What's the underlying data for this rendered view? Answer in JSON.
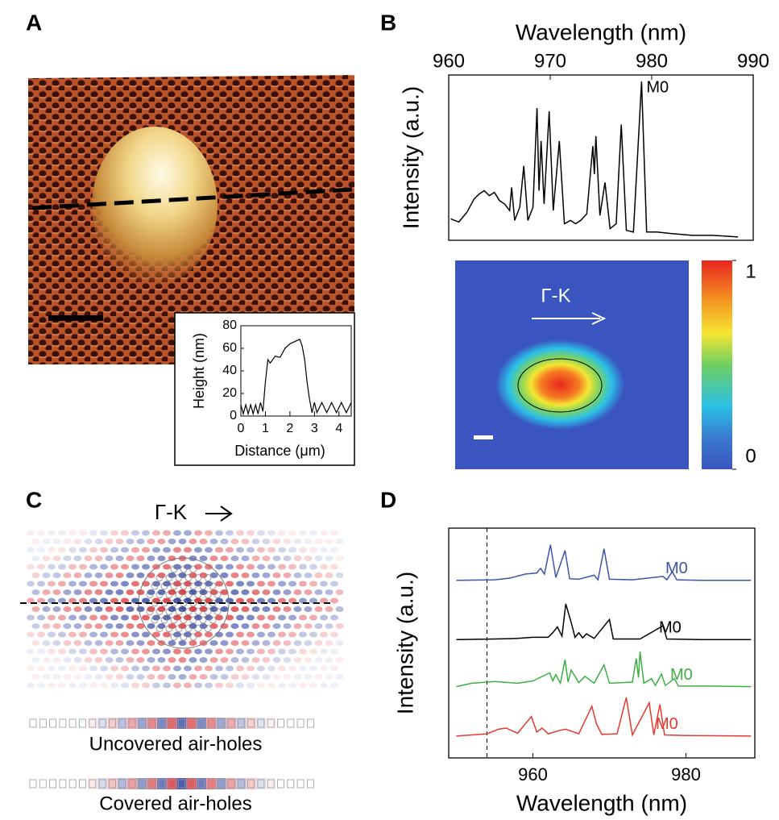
{
  "panel_labels": [
    "A",
    "B",
    "C",
    "D"
  ],
  "panel_b_map": {
    "direction": "Γ-K",
    "colorbar_ticks": [
      1,
      0
    ],
    "clim": [
      0,
      1
    ]
  },
  "panel_c": {
    "direction": "Γ-K",
    "captions": [
      "Uncovered air-holes",
      "Covered air-holes"
    ]
  },
  "chart_data": [
    {
      "type": "line",
      "xlabel": "Distance (μm)",
      "ylabel": "Height (nm)",
      "color": "#000000",
      "x": [
        0,
        0.1,
        0.2,
        0.3,
        0.4,
        0.5,
        0.6,
        0.7,
        0.8,
        0.9,
        1.0,
        1.1,
        1.2,
        1.4,
        1.6,
        1.8,
        2.0,
        2.2,
        2.4,
        2.5,
        2.6,
        2.7,
        2.8,
        2.9,
        3.0,
        3.1,
        3.3,
        3.5,
        3.7,
        3.9,
        4.1,
        4.3,
        4.5
      ],
      "values": [
        10,
        2,
        10,
        2,
        10,
        2,
        10,
        2,
        12,
        4,
        30,
        50,
        47,
        53,
        52,
        60,
        64,
        66,
        68,
        62,
        50,
        30,
        15,
        3,
        12,
        3,
        12,
        3,
        12,
        3,
        12,
        3,
        12
      ],
      "xlim": [
        0,
        4.5
      ],
      "xticks": [
        0,
        1,
        2,
        3,
        4
      ],
      "ylim": [
        0,
        80
      ],
      "yticks": [
        0,
        20,
        40,
        60,
        80
      ]
    },
    {
      "type": "line",
      "xlabel": "Wavelength (nm)",
      "ylabel": "Intensity (a.u.)",
      "x_axis": "top",
      "color": "#000000",
      "annotation": "M0",
      "x": [
        960.2,
        961,
        961.8,
        962.5,
        963,
        963.5,
        964,
        964.5,
        965,
        965.5,
        966,
        966.2,
        966.5,
        967,
        967.4,
        967.8,
        968.3,
        968.7,
        968.9,
        969.1,
        969.4,
        969.9,
        970.3,
        970.9,
        971.4,
        972,
        972.5,
        973,
        973.6,
        974.2,
        974.35,
        974.5,
        974.9,
        975.4,
        975.9,
        976.5,
        977,
        977.5,
        978.2,
        979,
        979.5,
        980.5,
        982,
        984,
        986,
        988.5
      ],
      "values": [
        0.13,
        0.11,
        0.17,
        0.25,
        0.28,
        0.3,
        0.27,
        0.29,
        0.24,
        0.22,
        0.18,
        0.32,
        0.12,
        0.2,
        0.45,
        0.12,
        0.2,
        0.8,
        0.3,
        0.6,
        0.22,
        0.78,
        0.18,
        0.6,
        0.1,
        0.12,
        0.1,
        0.12,
        0.16,
        0.57,
        0.4,
        0.63,
        0.15,
        0.35,
        0.07,
        0.1,
        0.7,
        0.06,
        0.05,
        0.96,
        0.05,
        0.05,
        0.04,
        0.03,
        0.03,
        0.02
      ],
      "xlim": [
        960,
        990
      ],
      "xticks": [
        960,
        970,
        980,
        990
      ],
      "ylim": [
        0,
        1
      ]
    },
    {
      "type": "line",
      "xlabel": "Wavelength (nm)",
      "ylabel": "Intensity (a.u.)",
      "x_axis": "bottom",
      "xlim": [
        949,
        989
      ],
      "xticks": [
        960,
        980
      ],
      "ylim": [
        0,
        4
      ],
      "dashed_line_x": 954,
      "series": [
        {
          "color": "#3b55a8",
          "annotation": "M0",
          "x": [
            950,
            955,
            957,
            959,
            960.5,
            961,
            961.5,
            962.3,
            963,
            964.2,
            964.8,
            966,
            968,
            968.5,
            969.3,
            970,
            973,
            977,
            977.5,
            978.2,
            978.8,
            982,
            988.5
          ],
          "values": [
            3.09,
            3.1,
            3.13,
            3.2,
            3.22,
            3.3,
            3.2,
            3.71,
            3.14,
            3.61,
            3.12,
            3.11,
            3.18,
            3.1,
            3.64,
            3.11,
            3.1,
            3.16,
            3.1,
            3.24,
            3.1,
            3.09,
            3.09
          ]
        },
        {
          "color": "#000000",
          "annotation": "M0",
          "x": [
            950,
            955,
            958,
            960,
            962,
            962.6,
            963.2,
            963.8,
            964.3,
            965,
            965.5,
            966,
            966.5,
            967,
            968,
            970,
            970.5,
            974,
            977,
            977.5,
            982,
            988.5
          ],
          "values": [
            2.06,
            2.07,
            2.08,
            2.1,
            2.1,
            2.18,
            2.28,
            2.12,
            2.68,
            2.36,
            2.1,
            2.18,
            2.09,
            2.16,
            2.08,
            2.41,
            2.07,
            2.07,
            2.3,
            2.07,
            2.06,
            2.06
          ]
        },
        {
          "color": "#3cb043",
          "annotation": "M0",
          "x": [
            950,
            952,
            955,
            958,
            960,
            962.2,
            962.6,
            963,
            963.6,
            964.2,
            964.6,
            965,
            966,
            966.8,
            968,
            969.3,
            970,
            973,
            973.5,
            973.8,
            974,
            974.5,
            975.5,
            976,
            976.8,
            977.3,
            978.5,
            979,
            983,
            988.5
          ],
          "values": [
            1.24,
            1.3,
            1.33,
            1.3,
            1.34,
            1.48,
            1.34,
            1.45,
            1.3,
            1.71,
            1.32,
            1.53,
            1.31,
            1.42,
            1.3,
            1.62,
            1.3,
            1.32,
            1.73,
            1.4,
            1.85,
            1.3,
            1.38,
            1.26,
            1.46,
            1.26,
            1.38,
            1.25,
            1.25,
            1.24
          ]
        },
        {
          "color": "#e53a2f",
          "annotation": "M0",
          "x": [
            950,
            952,
            954,
            955.5,
            956.5,
            958,
            959.8,
            960.5,
            961.2,
            962,
            963.5,
            964.3,
            966,
            967.7,
            968.3,
            969,
            971,
            972.2,
            973,
            975.2,
            975.8,
            976.6,
            977.2,
            980,
            988.5
          ],
          "values": [
            0.38,
            0.4,
            0.42,
            0.5,
            0.52,
            0.43,
            0.72,
            0.45,
            0.52,
            0.42,
            0.48,
            0.5,
            0.42,
            0.9,
            0.6,
            0.41,
            0.42,
            1.05,
            0.4,
            0.96,
            0.4,
            0.93,
            0.4,
            0.39,
            0.38
          ]
        }
      ]
    }
  ]
}
